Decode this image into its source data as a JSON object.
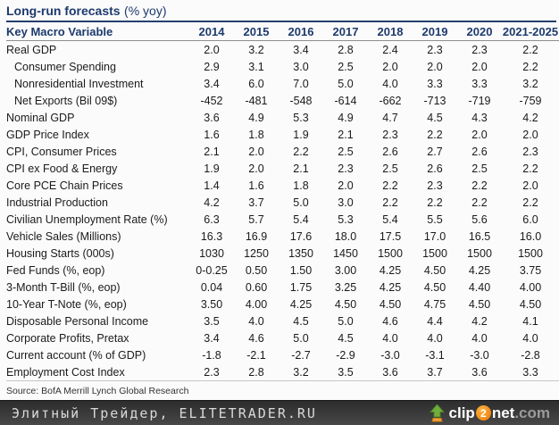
{
  "title": {
    "main": "Long-run forecasts",
    "unit": "(% yoy)"
  },
  "table": {
    "columns": [
      "Key Macro Variable",
      "2014",
      "2015",
      "2016",
      "2017",
      "2018",
      "2019",
      "2020",
      "2021-2025"
    ],
    "rows": [
      {
        "label": "Real GDP",
        "indent": false,
        "values": [
          "2.0",
          "3.2",
          "3.4",
          "2.8",
          "2.4",
          "2.3",
          "2.3",
          "2.2"
        ]
      },
      {
        "label": "Consumer Spending",
        "indent": true,
        "values": [
          "2.9",
          "3.1",
          "3.0",
          "2.5",
          "2.0",
          "2.0",
          "2.0",
          "2.2"
        ]
      },
      {
        "label": "Nonresidential Investment",
        "indent": true,
        "values": [
          "3.4",
          "6.0",
          "7.0",
          "5.0",
          "4.0",
          "3.3",
          "3.3",
          "3.2"
        ]
      },
      {
        "label": "Net Exports (Bil 09$)",
        "indent": true,
        "values": [
          "-452",
          "-481",
          "-548",
          "-614",
          "-662",
          "-713",
          "-719",
          "-759"
        ]
      },
      {
        "label": "Nominal GDP",
        "indent": false,
        "values": [
          "3.6",
          "4.9",
          "5.3",
          "4.9",
          "4.7",
          "4.5",
          "4.3",
          "4.2"
        ]
      },
      {
        "label": "GDP Price Index",
        "indent": false,
        "values": [
          "1.6",
          "1.8",
          "1.9",
          "2.1",
          "2.3",
          "2.2",
          "2.0",
          "2.0"
        ]
      },
      {
        "label": "CPI, Consumer Prices",
        "indent": false,
        "values": [
          "2.1",
          "2.0",
          "2.2",
          "2.5",
          "2.6",
          "2.7",
          "2.6",
          "2.3"
        ]
      },
      {
        "label": "CPI ex Food & Energy",
        "indent": false,
        "values": [
          "1.9",
          "2.0",
          "2.1",
          "2.3",
          "2.5",
          "2.6",
          "2.5",
          "2.2"
        ]
      },
      {
        "label": "Core PCE Chain Prices",
        "indent": false,
        "values": [
          "1.4",
          "1.6",
          "1.8",
          "2.0",
          "2.2",
          "2.3",
          "2.2",
          "2.0"
        ]
      },
      {
        "label": "Industrial Production",
        "indent": false,
        "values": [
          "4.2",
          "3.7",
          "5.0",
          "3.0",
          "2.2",
          "2.2",
          "2.2",
          "2.2"
        ]
      },
      {
        "label": "Civilian Unemployment Rate (%)",
        "indent": false,
        "values": [
          "6.3",
          "5.7",
          "5.4",
          "5.3",
          "5.4",
          "5.5",
          "5.6",
          "6.0"
        ]
      },
      {
        "label": "Vehicle Sales (Millions)",
        "indent": false,
        "values": [
          "16.3",
          "16.9",
          "17.6",
          "18.0",
          "17.5",
          "17.0",
          "16.5",
          "16.0"
        ]
      },
      {
        "label": "Housing Starts (000s)",
        "indent": false,
        "values": [
          "1030",
          "1250",
          "1350",
          "1450",
          "1500",
          "1500",
          "1500",
          "1500"
        ]
      },
      {
        "label": "Fed Funds (%, eop)",
        "indent": false,
        "values": [
          "0-0.25",
          "0.50",
          "1.50",
          "3.00",
          "4.25",
          "4.50",
          "4.25",
          "3.75"
        ]
      },
      {
        "label": "3-Month T-Bill (%, eop)",
        "indent": false,
        "values": [
          "0.04",
          "0.60",
          "1.75",
          "3.25",
          "4.25",
          "4.50",
          "4.40",
          "4.00"
        ]
      },
      {
        "label": "10-Year T-Note (%, eop)",
        "indent": false,
        "values": [
          "3.50",
          "4.00",
          "4.25",
          "4.50",
          "4.50",
          "4.75",
          "4.50",
          "4.50"
        ]
      },
      {
        "label": "Disposable Personal Income",
        "indent": false,
        "values": [
          "3.5",
          "4.0",
          "4.5",
          "5.0",
          "4.6",
          "4.4",
          "4.2",
          "4.1"
        ]
      },
      {
        "label": "Corporate Profits, Pretax",
        "indent": false,
        "values": [
          "3.4",
          "4.6",
          "5.0",
          "4.5",
          "4.0",
          "4.0",
          "4.0",
          "4.0"
        ]
      },
      {
        "label": "Current account (% of GDP)",
        "indent": false,
        "values": [
          "-1.8",
          "-2.1",
          "-2.7",
          "-2.9",
          "-3.0",
          "-3.1",
          "-3.0",
          "-2.8"
        ]
      },
      {
        "label": "Employment Cost Index",
        "indent": false,
        "values": [
          "2.3",
          "2.8",
          "3.2",
          "3.5",
          "3.6",
          "3.7",
          "3.6",
          "3.3"
        ]
      }
    ]
  },
  "source": "Source: BofA Merrill Lynch Global Research",
  "watermark": {
    "text": "Элитный Трейдер, ELITETRADER.RU",
    "logo": {
      "clip": "clip",
      "two": "2",
      "net": "net",
      "com": ".com"
    }
  },
  "colors": {
    "heading_navy": "#1d3a6d",
    "text": "#1b1b1b",
    "watermark_bar": "#3a3a3a",
    "logo_orange": "#ee7a00",
    "logo_green": "#6fae3d"
  }
}
